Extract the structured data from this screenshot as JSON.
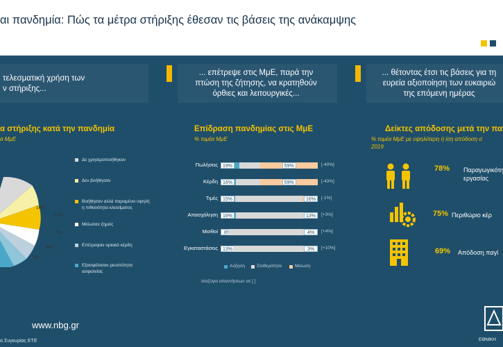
{
  "header": {
    "title": "αι πανδημία: Πώς τα μέτρα στήριξης έθεσαν τις βάσεις της ανάκαμψης"
  },
  "colors": {
    "background": "#1f4e6a",
    "accent": "#f5c400",
    "increase": "#4aa7c8",
    "stable": "#d9d9d9",
    "decrease": "#f9c9a0"
  },
  "bands": [
    {
      "text": "τελεσματική χρήση των\nν στήριξης..."
    },
    {
      "text": "... επέτρεψε στις ΜμΕ, παρά την\nπτώση της ζήτησης, να κρατηθούν\nόρθιες και λειτουργικές..."
    },
    {
      "text": "... θέτοντας έτσι τις βάσεις για τη\nευρεία αξιοποίηση των ευκαιριώ\nτης επόμενη ημέρας"
    }
  ],
  "pie_section": {
    "title": "α στήριξης κατά την πανδημία",
    "subtitle": "α ΜμΕ",
    "slice_labels": [
      "16%",
      "10%",
      "7%",
      "8%",
      "7%"
    ],
    "legend": [
      {
        "label": "Δε χρησιμοποιήθηκαν",
        "color": "#d9d9d9"
      },
      {
        "label": "Δεν βοήθησαν",
        "color": "#f7f0a8"
      },
      {
        "label": "Βοήθησαν αλλά παραμένει υψηλή η πιθανότητα κλεισίματος",
        "color": "#f5c400"
      },
      {
        "label": "Μείωσαν ζημιές",
        "color": "#ffffff"
      },
      {
        "label": "Επέτρεψαν οριακά κέρδη",
        "color": "#bcd0dd"
      },
      {
        "label": "Εξασφάλισαν ρευστότητα ασφαλείας",
        "color": "#4aa7c8"
      }
    ]
  },
  "chart_data": {
    "type": "bar",
    "title": "Επίδραση πανδημίας στις ΜμΕ",
    "subtitle": "% τομέα ΜμΕ",
    "categories": [
      "Πωλήσεις",
      "Κέρδη",
      "Τιμές",
      "Απασχόληση",
      "Μισθοί",
      "Εγκαταστάσεις"
    ],
    "series": [
      {
        "name": "Αύξηση",
        "values": [
          19,
          16,
          15,
          16,
          8,
          13
        ]
      },
      {
        "name": "Σταθερότητα",
        "values": [
          22,
          25,
          69,
          71,
          88,
          84
        ]
      },
      {
        "name": "Μείωση",
        "values": [
          59,
          59,
          16,
          13,
          4,
          3
        ]
      }
    ],
    "balances": [
      "[-40%]",
      "[-43%]",
      "[-1%]",
      "[+3%]",
      "[+4%]",
      "[+10%]"
    ],
    "footnote": "Ισοζύγιο απαντήσεων σε [ ]"
  },
  "indicators": {
    "title": "Δείκτες απόδοσης μετά την πανδημ",
    "subtitle": "% τομέα ΜμΕ με υψηλότερη ή ίση απόδοση σ\n2019",
    "items": [
      {
        "pct": "78%",
        "label": "Παραγωγικότητ\nεργασίας",
        "icon": "people-icon"
      },
      {
        "pct": "75%",
        "label": "Περιθώριο κέρ",
        "icon": "chart-gear-icon"
      },
      {
        "pct": "69%",
        "label": "Απόδοση παγί",
        "icon": "building-icon"
      }
    ]
  },
  "footer": {
    "website": "www.nbg.gr",
    "source": "α Συγκυρίας ΕΤΕ",
    "bank": "ΕΘΝΙΚΗ"
  }
}
